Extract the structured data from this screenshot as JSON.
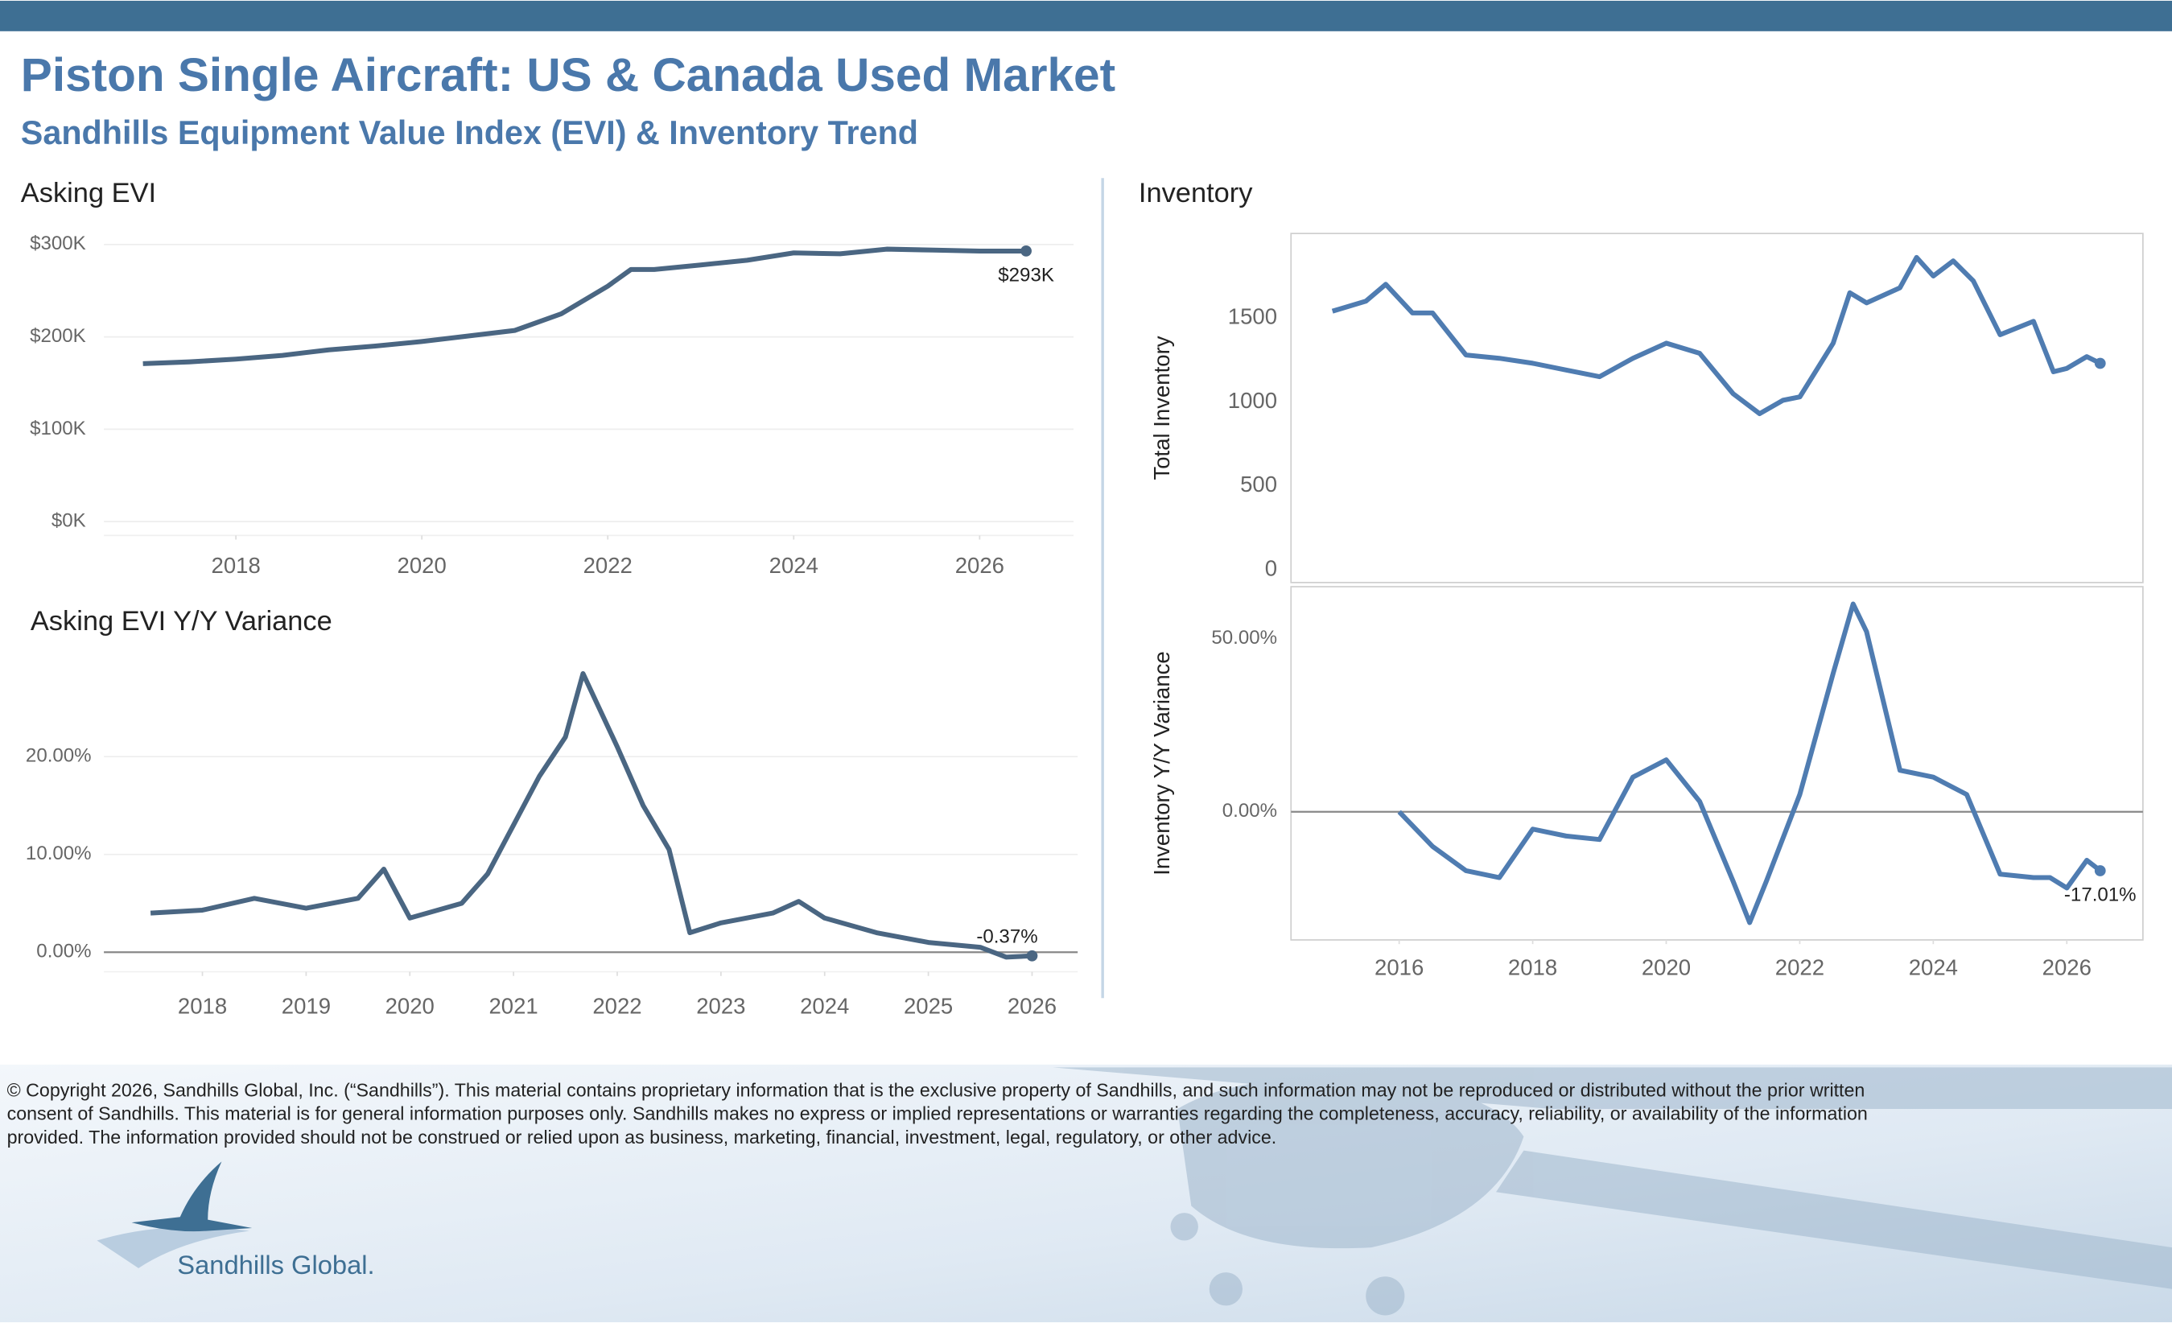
{
  "header": {
    "title": "Piston Single Aircraft:  US & Canada Used Market",
    "subtitle": "Sandhills Equipment Value Index (EVI) & Inventory Trend"
  },
  "chart_data": [
    {
      "type": "line",
      "title": "Asking EVI",
      "color": "#4a6682",
      "grid": true,
      "x": [
        2017,
        2017.5,
        2018,
        2018.5,
        2019,
        2019.5,
        2020,
        2020.5,
        2021,
        2021.5,
        2022,
        2022.25,
        2022.5,
        2023,
        2023.5,
        2024,
        2024.5,
        2025,
        2025.5,
        2026,
        2026.5
      ],
      "values": [
        171000,
        173000,
        176000,
        180000,
        186000,
        190000,
        195000,
        201000,
        207000,
        225000,
        255000,
        273000,
        273000,
        278000,
        283000,
        291000,
        290000,
        295000,
        294000,
        293000,
        293000
      ],
      "value_labels": [
        null,
        null,
        null,
        null,
        null,
        null,
        null,
        null,
        null,
        null,
        null,
        null,
        null,
        null,
        null,
        null,
        null,
        null,
        null,
        null,
        "$293K"
      ],
      "xlim": [
        2016.58,
        2027.01
      ],
      "xticks": [
        2018,
        2020,
        2022,
        2024,
        2026
      ],
      "ylim": [
        -15000,
        315000
      ],
      "yticks": [
        {
          "value": 0,
          "label": "$0K"
        },
        {
          "value": 100000,
          "label": "$100K"
        },
        {
          "value": 200000,
          "label": "$200K"
        },
        {
          "value": 300000,
          "label": "$300K"
        }
      ]
    },
    {
      "type": "line",
      "title": "Asking EVI Y/Y Variance",
      "color": "#4a6682",
      "grid": true,
      "zero_line": true,
      "x": [
        2017.5,
        2018,
        2018.5,
        2019,
        2019.5,
        2019.75,
        2020,
        2020.5,
        2020.75,
        2021,
        2021.25,
        2021.5,
        2021.67,
        2022,
        2022.25,
        2022.5,
        2022.7,
        2023,
        2023.5,
        2023.75,
        2024,
        2024.5,
        2025,
        2025.5,
        2025.75,
        2026
      ],
      "values": [
        4.0,
        4.3,
        5.5,
        4.5,
        5.5,
        8.5,
        3.5,
        5.0,
        8.0,
        13.0,
        18.0,
        22.0,
        28.5,
        21.0,
        15.0,
        10.5,
        2.0,
        3.0,
        4.0,
        5.2,
        3.5,
        2.0,
        1.0,
        0.5,
        -0.5,
        -0.37
      ],
      "value_labels": [
        null,
        null,
        null,
        null,
        null,
        null,
        null,
        null,
        null,
        null,
        null,
        null,
        null,
        null,
        null,
        null,
        null,
        null,
        null,
        null,
        null,
        null,
        null,
        null,
        null,
        "-0.37%"
      ],
      "xlim": [
        2017.05,
        2026.44
      ],
      "xticks": [
        2018,
        2019,
        2020,
        2021,
        2022,
        2023,
        2024,
        2025,
        2026
      ],
      "ylim": [
        -2,
        31
      ],
      "yticks": [
        {
          "value": 0,
          "label": "0.00%"
        },
        {
          "value": 10,
          "label": "10.00%"
        },
        {
          "value": 20,
          "label": "20.00%"
        }
      ]
    },
    {
      "type": "line",
      "title": "Inventory",
      "y_label": "Total Inventory",
      "color": "#4f7cb1",
      "frame": true,
      "x": [
        2015,
        2015.5,
        2015.8,
        2016.2,
        2016.5,
        2017,
        2017.5,
        2018,
        2018.5,
        2019,
        2019.5,
        2020,
        2020.5,
        2021,
        2021.4,
        2021.75,
        2022,
        2022.5,
        2022.75,
        2023,
        2023.5,
        2023.75,
        2024,
        2024.3,
        2024.6,
        2025,
        2025.5,
        2025.8,
        2026,
        2026.3,
        2026.5
      ],
      "values": [
        1540,
        1600,
        1700,
        1530,
        1530,
        1280,
        1260,
        1230,
        1190,
        1150,
        1260,
        1350,
        1290,
        1050,
        930,
        1010,
        1030,
        1350,
        1650,
        1590,
        1680,
        1860,
        1750,
        1840,
        1720,
        1400,
        1480,
        1180,
        1200,
        1270,
        1230
      ],
      "xlim": [
        2014.38,
        2027.14
      ],
      "ylim": [
        -75,
        2003
      ],
      "yticks": [
        0,
        500,
        1000,
        1500
      ]
    },
    {
      "type": "line",
      "y_label": "Inventory  Y/Y Variance",
      "color": "#4f7cb1",
      "frame": true,
      "zero_line": true,
      "x": [
        2016,
        2016.5,
        2017,
        2017.5,
        2018,
        2018.5,
        2019,
        2019.5,
        2020,
        2020.5,
        2021,
        2021.25,
        2021.5,
        2022,
        2022.5,
        2022.8,
        2023,
        2023.5,
        2024,
        2024.5,
        2025,
        2025.5,
        2025.75,
        2026,
        2026.3,
        2026.5
      ],
      "values": [
        0,
        -10,
        -17,
        -19,
        -5,
        -7,
        -8,
        10,
        15,
        3,
        -20,
        -32,
        -20,
        5,
        40,
        60,
        52,
        12,
        10,
        5,
        -18,
        -19,
        -19,
        -22,
        -14,
        -17.01
      ],
      "value_labels": [
        null,
        null,
        null,
        null,
        null,
        null,
        null,
        null,
        null,
        null,
        null,
        null,
        null,
        null,
        null,
        null,
        null,
        null,
        null,
        null,
        null,
        null,
        null,
        null,
        null,
        "-17.01%"
      ],
      "xlim": [
        2014.38,
        2027.14
      ],
      "xticks": [
        2016,
        2018,
        2020,
        2022,
        2024,
        2026
      ],
      "ylim": [
        -37,
        65
      ],
      "yticks": [
        {
          "value": 0,
          "label": "0.00%"
        },
        {
          "value": 50,
          "label": "50.00%"
        }
      ]
    }
  ],
  "footer": {
    "copyright": [
      "© Copyright 2026, Sandhills Global, Inc. (“Sandhills”). This material contains proprietary information that is the exclusive property of Sandhills, and such information may not be reproduced or distributed without the prior written",
      "consent of Sandhills. This material is for general information purposes only. Sandhills makes no express or implied representations or warranties regarding the completeness, accuracy, reliability, or availability of the information",
      "provided. The information provided should not be construed or relied upon as business, marketing, financial, investment, legal, regulatory, or other advice."
    ],
    "logo": "Sandhills Global."
  }
}
